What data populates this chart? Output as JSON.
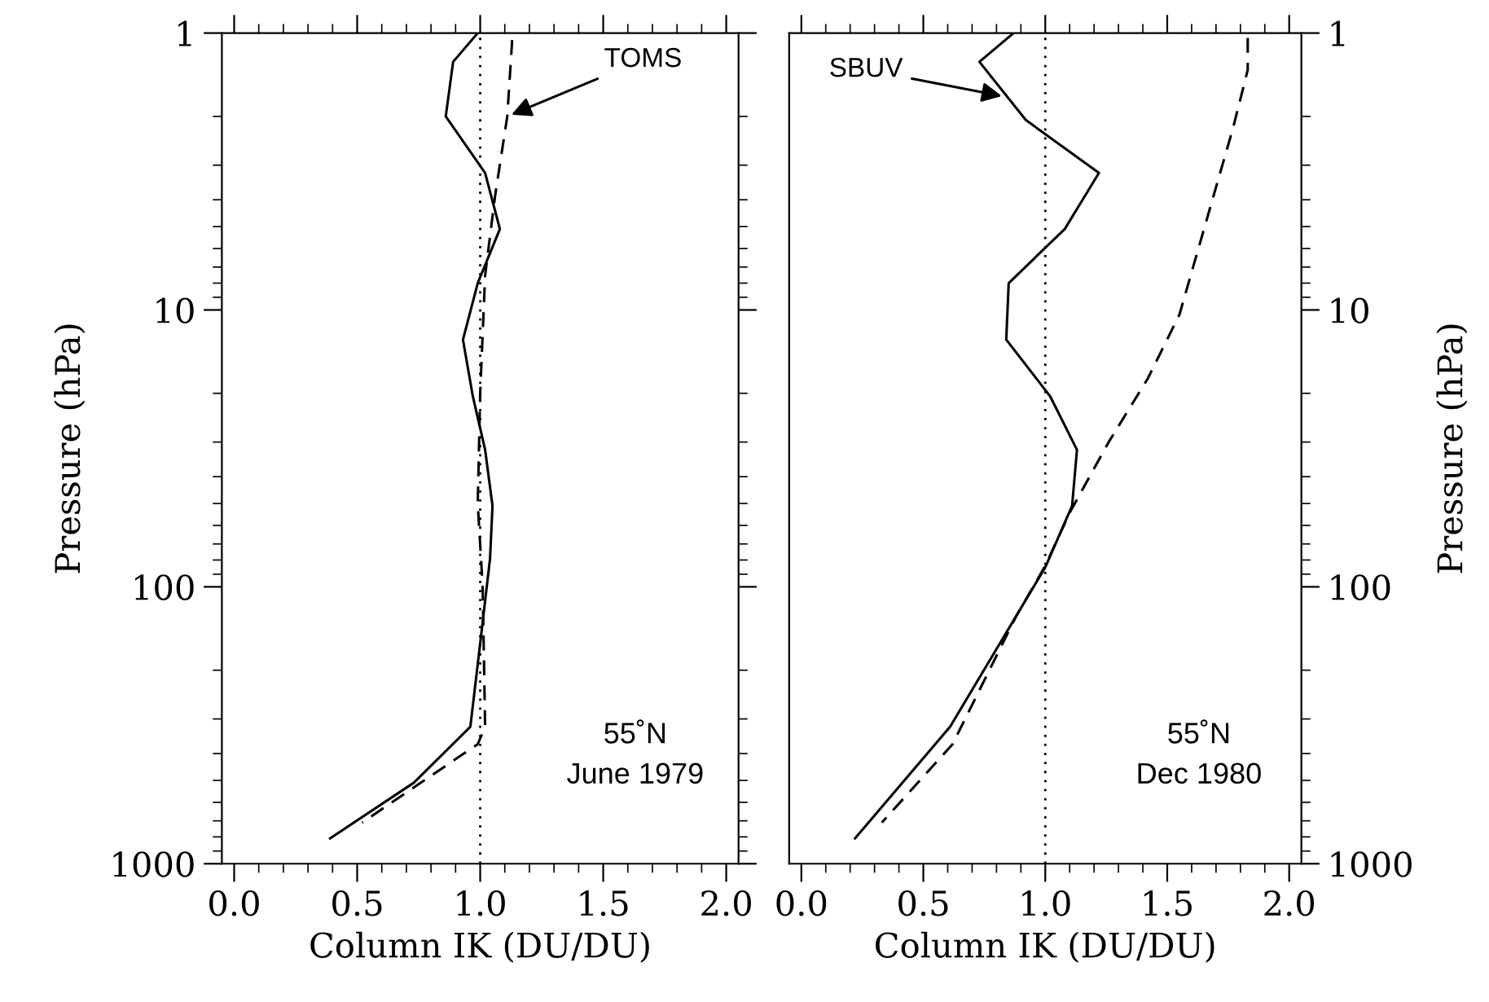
{
  "chart_data": [
    {
      "type": "line",
      "xlabel": "Column IK (DU/DU)",
      "ylabel": "Pressure (hPa)",
      "log": "y",
      "xlim": [
        -0.05,
        2.05
      ],
      "xticks": [
        {
          "value": 0,
          "label": "0.0"
        },
        {
          "value": 0.5,
          "label": "0.5"
        },
        {
          "value": 1,
          "label": "1.0"
        },
        {
          "value": 1.5,
          "label": "1.5"
        },
        {
          "value": 2,
          "label": "2.0"
        }
      ],
      "ylim": [
        1000,
        1
      ],
      "yticks": [
        1,
        10,
        100,
        1000
      ],
      "grid": false,
      "legend": false,
      "series": [
        {
          "color": "#000000",
          "line_style": "solid",
          "x": [
            0.99,
            0.89,
            0.86,
            1.02,
            1.08,
            0.99,
            0.93,
            0.97,
            1.02,
            1.05,
            1.04,
            1.0,
            0.96,
            0.73,
            0.39
          ],
          "values": [
            1,
            1.27,
            2.0,
            3.2,
            5.1,
            8.0,
            12.8,
            20.5,
            32,
            51,
            79,
            160,
            320,
            510,
            810
          ]
        },
        {
          "color": "#000000",
          "line_style": "dashed",
          "x": [
            1.13,
            1.11,
            1.06,
            1.02,
            1.0,
            0.99,
            1.01,
            1.02,
            0.99,
            0.52
          ],
          "values": [
            1.06,
            2.0,
            3.9,
            7.5,
            20,
            50,
            100,
            320,
            370,
            710
          ]
        }
      ],
      "ref_lines": [
        {
          "axis": "x",
          "value": 1,
          "line_style": "dotted",
          "color": "#000000"
        }
      ],
      "annotations": [
        {
          "text": "TOMS",
          "x": 1.11,
          "y": 2.0
        },
        "55˚N\nJune 1979"
      ]
    },
    {
      "type": "line",
      "xlabel": "Column IK (DU/DU)",
      "ylabel": "Pressure (hPa)",
      "log": "y",
      "xlim": [
        -0.05,
        2.05
      ],
      "xticks": [
        {
          "value": 0,
          "label": "0.0"
        },
        {
          "value": 0.5,
          "label": "0.5"
        },
        {
          "value": 1,
          "label": "1.0"
        },
        {
          "value": 1.5,
          "label": "1.5"
        },
        {
          "value": 2,
          "label": "2.0"
        }
      ],
      "ylim": [
        1000,
        1
      ],
      "yticks": [
        1,
        10,
        100,
        1000
      ],
      "grid": false,
      "legend": false,
      "series": [
        {
          "color": "#000000",
          "line_style": "solid",
          "x": [
            0.87,
            0.73,
            0.92,
            1.22,
            1.08,
            0.85,
            0.84,
            1.02,
            1.13,
            1.11,
            1.0,
            0.61,
            0.22
          ],
          "values": [
            1,
            1.27,
            2.06,
            3.2,
            5.1,
            8.0,
            12.8,
            20.5,
            32,
            51,
            85,
            320,
            810
          ]
        },
        {
          "color": "#000000",
          "line_style": "dashed",
          "x": [
            1.83,
            1.83,
            1.77,
            1.68,
            1.55,
            1.42,
            1.26,
            1.1,
            1.0,
            0.88,
            0.62,
            0.33
          ],
          "values": [
            1.04,
            1.36,
            2.2,
            4.15,
            10.4,
            17.7,
            30,
            54,
            84,
            128,
            370,
            710
          ]
        }
      ],
      "ref_lines": [
        {
          "axis": "x",
          "value": 1,
          "line_style": "dotted",
          "color": "#000000"
        }
      ],
      "annotations": [
        {
          "text": "SBUV",
          "x": 0.84,
          "y": 1.7
        },
        "55˚N\nDec 1980"
      ]
    }
  ]
}
